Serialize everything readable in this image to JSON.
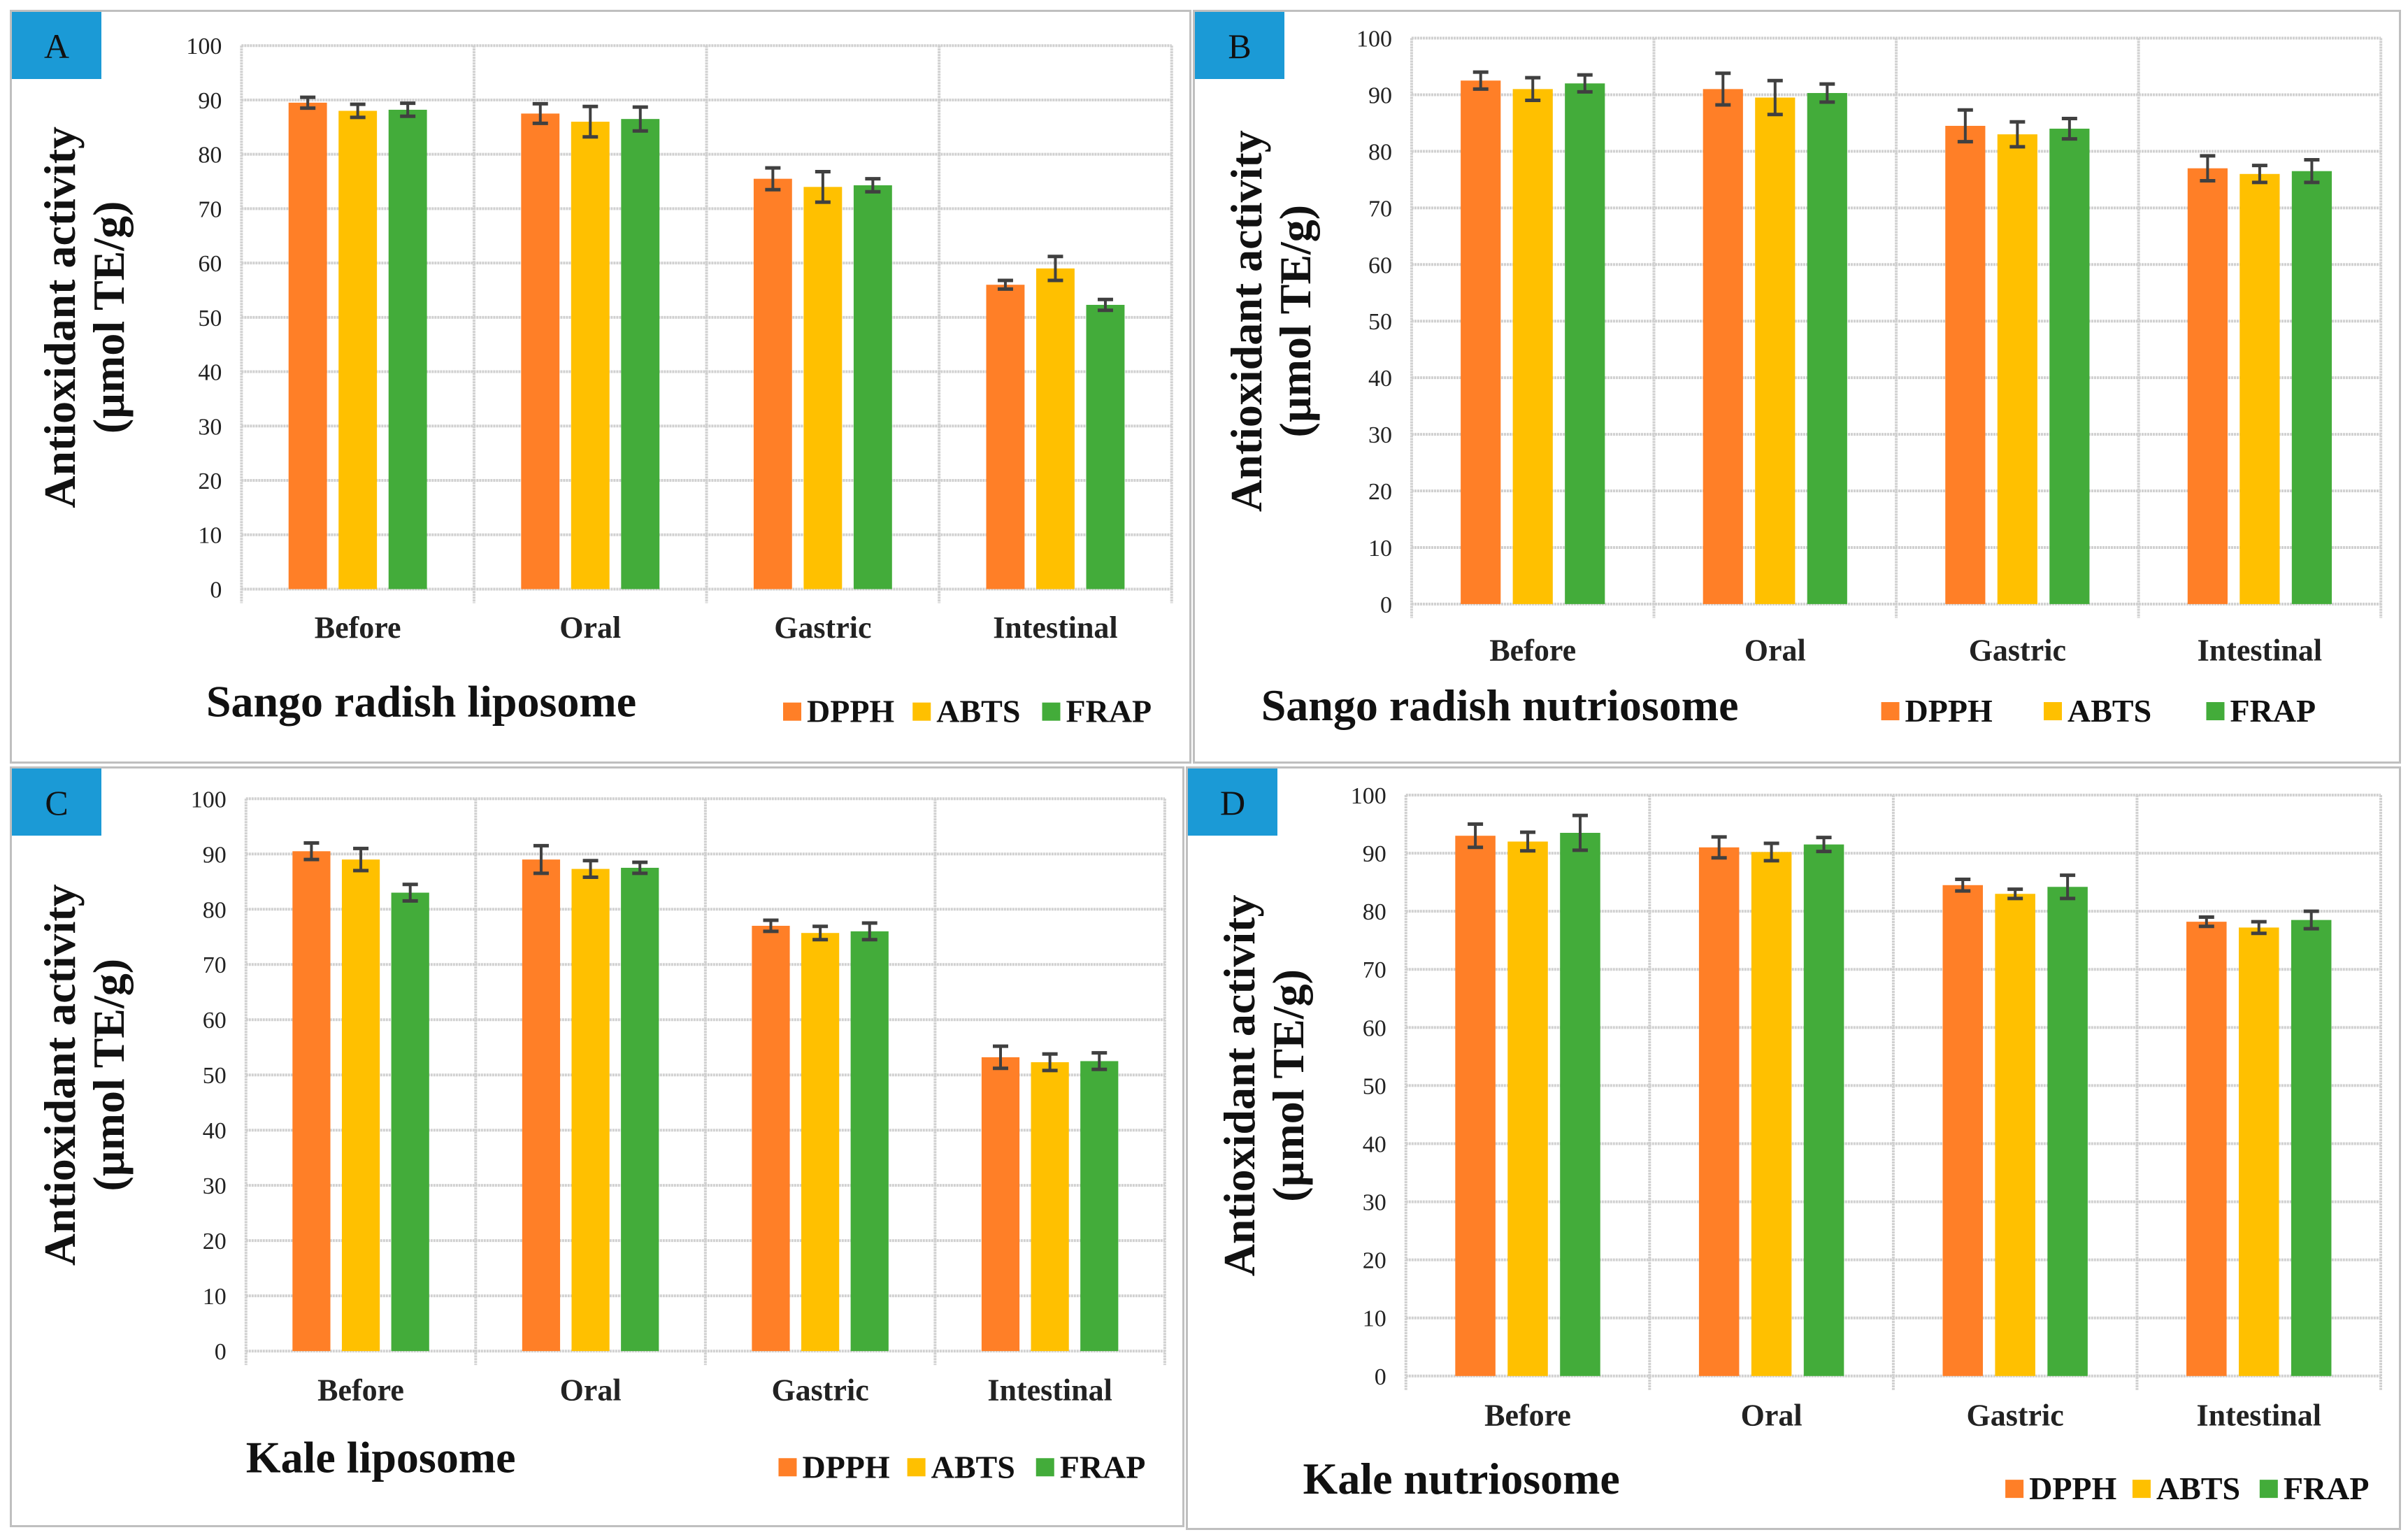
{
  "chart_data": [
    {
      "type": "bar",
      "panel_label": "A",
      "title": "Sango radish liposome",
      "ylabel": [
        "Antioxidant activity",
        "(µmol TE/g)"
      ],
      "ylim": [
        0,
        100
      ],
      "yticks": [
        "0",
        "10",
        "20",
        "30",
        "40",
        "50",
        "60",
        "70",
        "80",
        "90",
        "100"
      ],
      "categories": [
        "Before",
        "Oral",
        "Gastric",
        "Intestinal"
      ],
      "series": [
        {
          "name": "DPPH",
          "color": "#FF7F27",
          "values": [
            89.5,
            87.5,
            75.5,
            56.0
          ],
          "errors": [
            1.0,
            1.8,
            2.0,
            0.8
          ]
        },
        {
          "name": "ABTS",
          "color": "#FFC000",
          "values": [
            88.0,
            86.0,
            74.0,
            59.0
          ],
          "errors": [
            1.2,
            2.8,
            2.8,
            2.2
          ]
        },
        {
          "name": "FRAP",
          "color": "#43AC3A",
          "values": [
            88.2,
            86.5,
            74.3,
            52.3
          ],
          "errors": [
            1.2,
            2.2,
            1.2,
            1.0
          ]
        }
      ],
      "grid": true,
      "legend": "bottom-right"
    },
    {
      "type": "bar",
      "panel_label": "B",
      "title": "Sango radish nutriosome",
      "ylabel": [
        "Antioxidant activity",
        "(µmol TE/g)"
      ],
      "ylim": [
        0,
        100
      ],
      "yticks": [
        "0",
        "10",
        "20",
        "30",
        "40",
        "50",
        "60",
        "70",
        "80",
        "90",
        "100"
      ],
      "categories": [
        "Before",
        "Oral",
        "Gastric",
        "Intestinal"
      ],
      "series": [
        {
          "name": "DPPH",
          "color": "#FF7F27",
          "values": [
            92.5,
            91.0,
            84.5,
            77.0
          ],
          "errors": [
            1.5,
            2.8,
            2.8,
            2.2
          ]
        },
        {
          "name": "ABTS",
          "color": "#FFC000",
          "values": [
            91.0,
            89.5,
            83.0,
            76.0
          ],
          "errors": [
            2.0,
            3.0,
            2.2,
            1.5
          ]
        },
        {
          "name": "FRAP",
          "color": "#43AC3A",
          "values": [
            92.0,
            90.3,
            84.0,
            76.5
          ],
          "errors": [
            1.5,
            1.6,
            1.8,
            2.0
          ]
        }
      ],
      "grid": true,
      "legend": "bottom-right"
    },
    {
      "type": "bar",
      "panel_label": "C",
      "title": "Kale liposome",
      "ylabel": [
        "Antioxidant activity",
        "(µmol TE/g)"
      ],
      "ylim": [
        0,
        100
      ],
      "yticks": [
        "0",
        "10",
        "20",
        "30",
        "40",
        "50",
        "60",
        "70",
        "80",
        "90",
        "100"
      ],
      "categories": [
        "Before",
        "Oral",
        "Gastric",
        "Intestinal"
      ],
      "series": [
        {
          "name": "DPPH",
          "color": "#FF7F27",
          "values": [
            90.5,
            89.0,
            77.0,
            53.2
          ],
          "errors": [
            1.5,
            2.5,
            1.0,
            2.0
          ]
        },
        {
          "name": "ABTS",
          "color": "#FFC000",
          "values": [
            89.0,
            87.3,
            75.7,
            52.3
          ],
          "errors": [
            2.0,
            1.5,
            1.2,
            1.5
          ]
        },
        {
          "name": "FRAP",
          "color": "#43AC3A",
          "values": [
            83.0,
            87.5,
            76.0,
            52.5
          ],
          "errors": [
            1.5,
            1.0,
            1.5,
            1.5
          ]
        }
      ],
      "grid": true,
      "legend": "bottom-right"
    },
    {
      "type": "bar",
      "panel_label": "D",
      "title": "Kale nutriosome",
      "ylabel": [
        "Antioxidant activity",
        "(µmol TE/g)"
      ],
      "ylim": [
        0,
        100
      ],
      "yticks": [
        "0",
        "10",
        "20",
        "30",
        "40",
        "50",
        "60",
        "70",
        "80",
        "90",
        "100"
      ],
      "categories": [
        "Before",
        "Oral",
        "Gastric",
        "Intestinal"
      ],
      "series": [
        {
          "name": "DPPH",
          "color": "#FF7F27",
          "values": [
            93.0,
            91.0,
            84.5,
            78.2
          ],
          "errors": [
            2.0,
            1.8,
            1.0,
            0.8
          ]
        },
        {
          "name": "ABTS",
          "color": "#FFC000",
          "values": [
            92.0,
            90.2,
            83.0,
            77.2
          ],
          "errors": [
            1.6,
            1.5,
            0.8,
            1.0
          ]
        },
        {
          "name": "FRAP",
          "color": "#43AC3A",
          "values": [
            93.5,
            91.5,
            84.2,
            78.5
          ],
          "errors": [
            3.0,
            1.2,
            2.0,
            1.5
          ]
        }
      ],
      "grid": true,
      "legend": "bottom-right"
    }
  ],
  "label_box_color": "#1B9AD6"
}
